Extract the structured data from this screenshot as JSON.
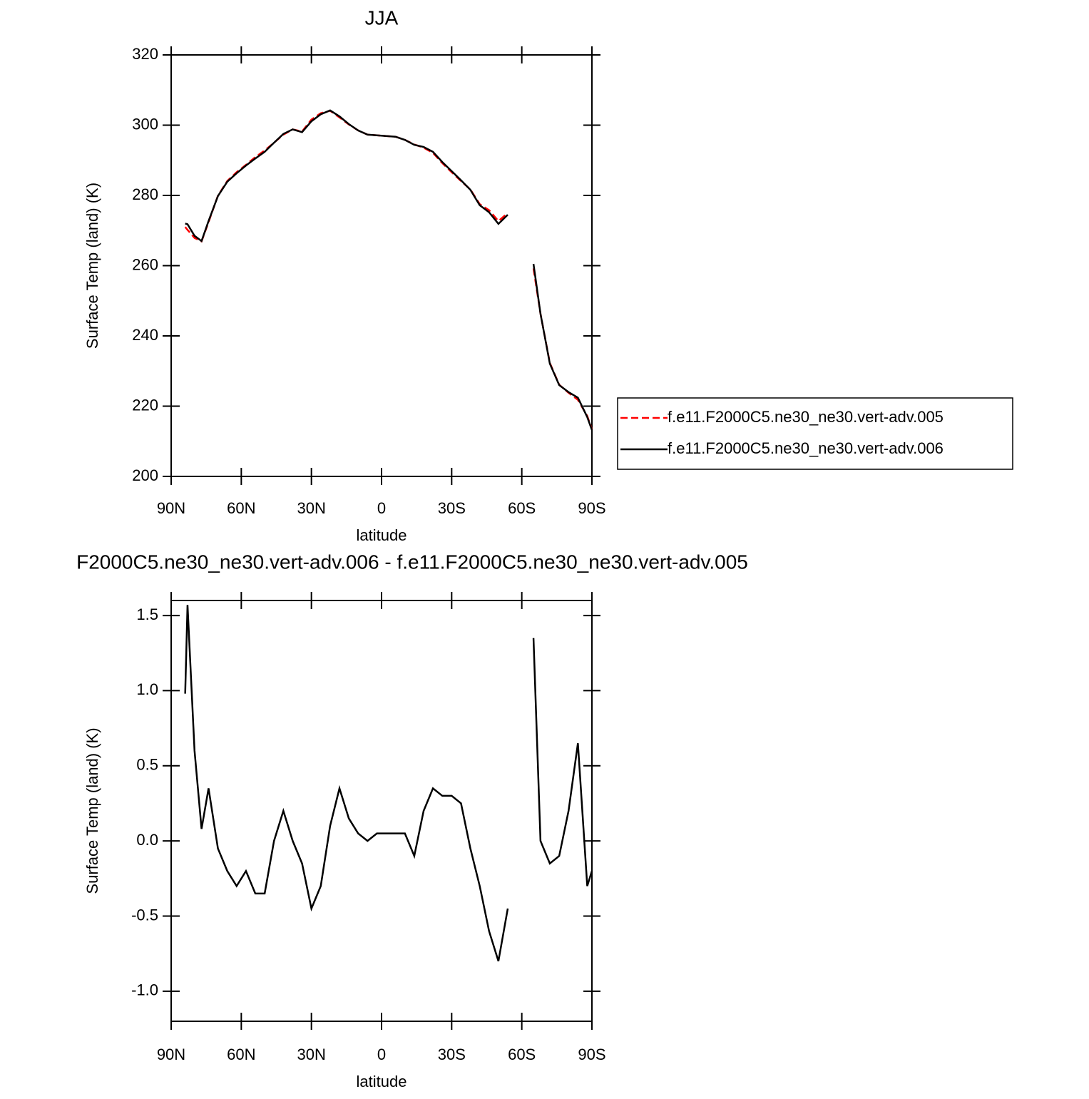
{
  "chart_data": [
    {
      "type": "line",
      "title": "JJA",
      "xlabel": "latitude",
      "ylabel": "Surface Temp (land) (K)",
      "x": [
        84,
        83,
        80,
        77,
        74,
        70,
        66,
        62,
        58,
        54,
        50,
        46,
        42,
        38,
        34,
        30,
        26,
        22,
        18,
        14,
        10,
        6,
        2,
        -2,
        -6,
        -10,
        -14,
        -18,
        -22,
        -26,
        -30,
        -34,
        -38,
        -42,
        -46,
        -50,
        -54,
        -60,
        -65,
        -68,
        -72,
        -76,
        -80,
        -84,
        -88,
        -90
      ],
      "series": [
        {
          "name": "f.e11.F2000C5.ne30_ne30.vert-adv.005",
          "color": "#ff0000",
          "dash": "dashed",
          "values": [
            271.0,
            270.2,
            267.9,
            266.9,
            272.4,
            279.9,
            284.1,
            286.6,
            288.7,
            290.9,
            292.8,
            295.0,
            297.3,
            298.8,
            298.2,
            301.6,
            303.4,
            304.1,
            302.2,
            300.2,
            298.5,
            297.3,
            297.1,
            296.9,
            296.7,
            295.8,
            294.5,
            293.6,
            292.1,
            289.2,
            286.6,
            284.1,
            281.7,
            277.5,
            275.8,
            272.7,
            275.0,
            null,
            259.2,
            246.3,
            232.3,
            226.1,
            223.8,
            221.8,
            217.2,
            213.4
          ]
        },
        {
          "name": "f.e11.F2000C5.ne30_ne30.vert-adv.006",
          "color": "#000000",
          "dash": "solid",
          "values": [
            272,
            271.8,
            268.5,
            267,
            272.7,
            279.8,
            283.9,
            286.3,
            288.5,
            290.5,
            292.4,
            295,
            297.5,
            298.8,
            298,
            301.1,
            303.1,
            304.2,
            302.5,
            300.3,
            298.5,
            297.3,
            297.1,
            296.9,
            296.7,
            295.8,
            294.4,
            293.8,
            292.4,
            289.5,
            286.9,
            284.3,
            281.6,
            277.2,
            275.2,
            271.9,
            274.5,
            null,
            260.5,
            246.3,
            232.1,
            226,
            224,
            222.4,
            216.9,
            213.2
          ]
        }
      ],
      "xlim": [
        90,
        -90
      ],
      "xticks": [
        {
          "value": 90,
          "label": "90N"
        },
        {
          "value": 60,
          "label": "60N"
        },
        {
          "value": 30,
          "label": "30N"
        },
        0,
        {
          "value": -30,
          "label": "30S"
        },
        {
          "value": -60,
          "label": "60S"
        },
        {
          "value": -90,
          "label": "90S"
        }
      ],
      "ylim": [
        200,
        320
      ],
      "yticks": [
        200,
        220,
        240,
        260,
        280,
        300,
        320
      ],
      "legend": "outside-right"
    },
    {
      "type": "line",
      "title": "F2000C5.ne30_ne30.vert-adv.006 - f.e11.F2000C5.ne30_ne30.vert-adv.005",
      "xlabel": "latitude",
      "ylabel": "Surface Temp (land) (K)",
      "x": [
        84,
        83,
        80,
        77,
        74,
        70,
        66,
        62,
        58,
        54,
        50,
        46,
        42,
        38,
        34,
        30,
        26,
        22,
        18,
        14,
        10,
        6,
        2,
        -2,
        -6,
        -10,
        -14,
        -18,
        -22,
        -26,
        -30,
        -34,
        -38,
        -42,
        -46,
        -50,
        -54,
        -60,
        -65,
        -68,
        -72,
        -76,
        -80,
        -84,
        -88,
        -90
      ],
      "series": [
        {
          "color": "#000000",
          "dash": "solid",
          "values": [
            0.98,
            1.57,
            0.6,
            0.08,
            0.35,
            -0.05,
            -0.2,
            -0.3,
            -0.2,
            -0.35,
            -0.35,
            0.0,
            0.2,
            0.0,
            -0.15,
            -0.45,
            -0.3,
            0.1,
            0.35,
            0.15,
            0.05,
            0.0,
            0.05,
            0.05,
            0.05,
            0.05,
            -0.1,
            0.2,
            0.35,
            0.3,
            0.3,
            0.25,
            -0.05,
            -0.3,
            -0.6,
            -0.8,
            -0.45,
            null,
            1.35,
            0.0,
            -0.15,
            -0.1,
            0.2,
            0.65,
            -0.3,
            -0.2
          ]
        }
      ],
      "xlim": [
        90,
        -90
      ],
      "xticks": [
        {
          "value": 90,
          "label": "90N"
        },
        {
          "value": 60,
          "label": "60N"
        },
        {
          "value": 30,
          "label": "30N"
        },
        0,
        {
          "value": -30,
          "label": "30S"
        },
        {
          "value": -60,
          "label": "60S"
        },
        {
          "value": -90,
          "label": "90S"
        }
      ],
      "ylim": [
        -1.2,
        1.6
      ],
      "yticks": [
        {
          "value": -1,
          "label": "-1.0"
        },
        -0.5,
        {
          "value": 0,
          "label": "0.0"
        },
        0.5,
        {
          "value": 1,
          "label": "1.0"
        },
        1.5
      ]
    }
  ]
}
